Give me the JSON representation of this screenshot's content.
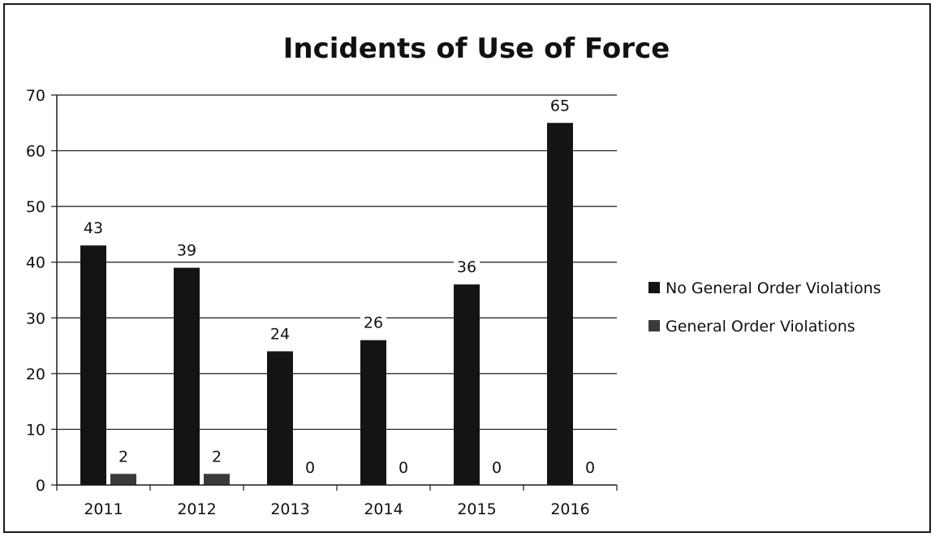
{
  "chart_data": {
    "type": "bar",
    "title": "Incidents of Use of Force",
    "xlabel": "",
    "ylabel": "",
    "categories": [
      "2011",
      "2012",
      "2013",
      "2014",
      "2015",
      "2016"
    ],
    "series": [
      {
        "name": "No General Order Violations",
        "values": [
          43,
          39,
          24,
          26,
          36,
          65
        ],
        "color": "#141414"
      },
      {
        "name": "General Order Violations",
        "values": [
          2,
          2,
          0,
          0,
          0,
          0
        ],
        "color": "#3a3a3a"
      }
    ],
    "ylim": [
      0,
      70
    ],
    "yticks": [
      0,
      10,
      20,
      30,
      40,
      50,
      60,
      70
    ],
    "grid": true,
    "legend": "right",
    "data_labels": true
  }
}
